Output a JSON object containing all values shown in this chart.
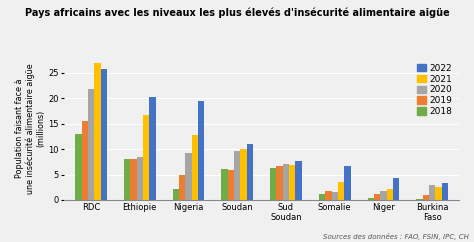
{
  "title": "Pays africains avec les niveaux les plus élevés d'insécurité alimentaire aigüe",
  "ylabel_line1": "Population faisant face à",
  "ylabel_line2": "une insécurité alimentaire aigüe",
  "ylabel_line3": "(millions)",
  "source": "Sources des données : FAO, FSIN, IPC, CH",
  "categories": [
    "RDC",
    "Ethiopie",
    "Nigeria",
    "Soudan",
    "Sud\nSoudan",
    "Somalie",
    "Niger",
    "Burkina\nFaso"
  ],
  "years": [
    "2018",
    "2019",
    "2020",
    "2021",
    "2022"
  ],
  "colors": [
    "#70AD47",
    "#ED7D31",
    "#A5A5A5",
    "#FFC000",
    "#4472C4"
  ],
  "legend_years": [
    "2022",
    "2021",
    "2020",
    "2019",
    "2018"
  ],
  "legend_colors": [
    "#4472C4",
    "#FFC000",
    "#A5A5A5",
    "#ED7D31",
    "#70AD47"
  ],
  "data": {
    "2018": [
      13.0,
      8.0,
      2.2,
      6.1,
      6.2,
      1.2,
      0.4,
      0.2
    ],
    "2019": [
      15.5,
      8.0,
      5.0,
      5.8,
      6.6,
      1.7,
      1.1,
      1.0
    ],
    "2020": [
      21.8,
      8.4,
      9.2,
      9.7,
      7.0,
      1.5,
      1.7,
      2.9
    ],
    "2021": [
      27.0,
      16.6,
      12.8,
      10.0,
      6.8,
      3.5,
      2.1,
      2.6
    ],
    "2022": [
      25.8,
      20.3,
      19.5,
      11.0,
      7.7,
      6.6,
      4.4,
      3.3
    ]
  },
  "ylim": [
    0,
    28
  ],
  "yticks": [
    0,
    5,
    10,
    15,
    20,
    25
  ],
  "background_color": "#F0F0F0",
  "title_fontsize": 7.0,
  "legend_fontsize": 6.5,
  "tick_fontsize": 6.0,
  "ylabel_fontsize": 5.8,
  "source_fontsize": 5.0
}
